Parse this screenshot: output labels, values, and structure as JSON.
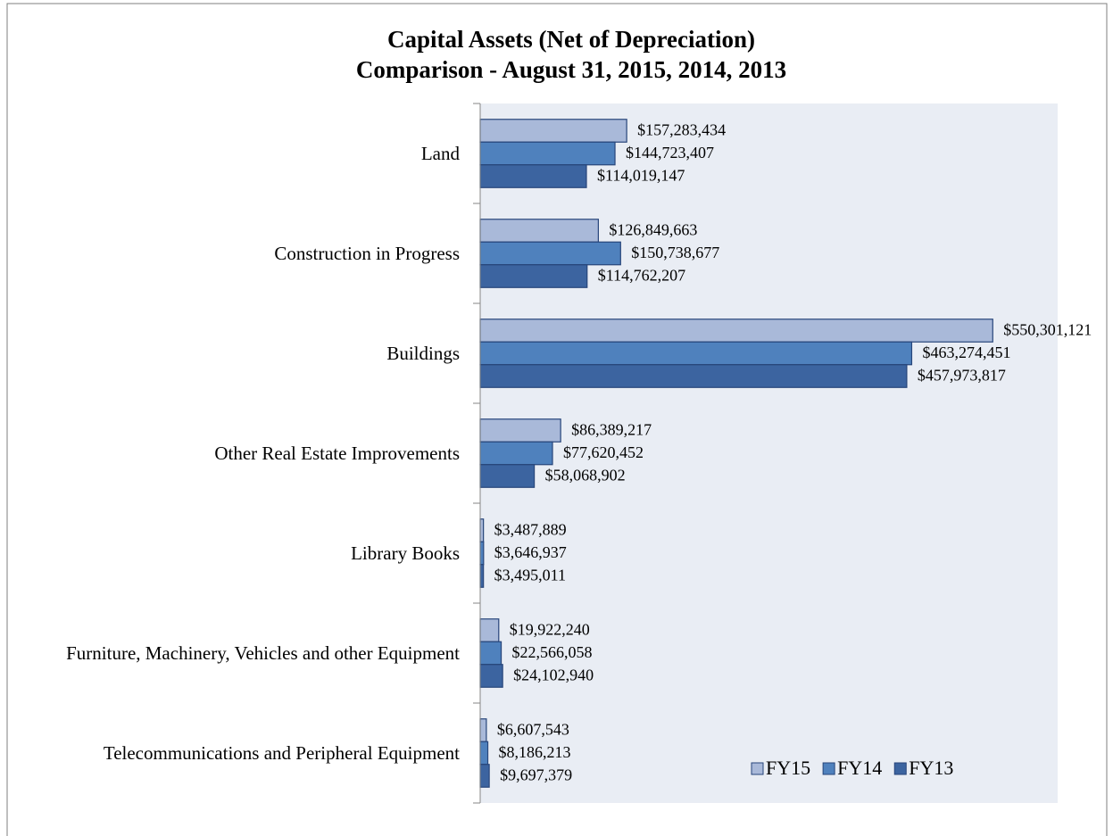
{
  "chart_data": {
    "type": "bar",
    "orientation": "horizontal",
    "title": [
      "Capital Assets (Net of Depreciation)",
      "Comparison - August 31, 2015, 2014, 2013"
    ],
    "categories": [
      "Land",
      "Construction in Progress",
      "Buildings",
      "Other Real Estate Improvements",
      "Library Books",
      "Furniture, Machinery, Vehicles and other Equipment",
      "Telecommunications and Peripheral Equipment"
    ],
    "xlim": [
      0,
      620000000
    ],
    "legend": "bottom-right",
    "series": [
      {
        "name": "FY15",
        "color": "#a9b9d9",
        "values": [
          157283434,
          126849663,
          550301121,
          86389217,
          3487889,
          19922240,
          6607543
        ],
        "value_labels": [
          "$157,283,434",
          "$126,849,663",
          "$550,301,121",
          "$86,389,217",
          "$3,487,889",
          "$19,922,240",
          "$6,607,543"
        ]
      },
      {
        "name": "FY14",
        "color": "#4f81bd",
        "values": [
          144723407,
          150738677,
          463274451,
          77620452,
          3646937,
          22566058,
          8186213
        ],
        "value_labels": [
          "$144,723,407",
          "$150,738,677",
          "$463,274,451",
          "$77,620,452",
          "$3,646,937",
          "$22,566,058",
          "$8,186,213"
        ]
      },
      {
        "name": "FY13",
        "color": "#3c64a0",
        "values": [
          114019147,
          114762207,
          457973817,
          58068902,
          3495011,
          24102940,
          9697379
        ],
        "value_labels": [
          "$114,019,147",
          "$114,762,207",
          "$457,973,817",
          "$58,068,902",
          "$3,495,011",
          "$24,102,940",
          "$9,697,379"
        ]
      }
    ]
  }
}
